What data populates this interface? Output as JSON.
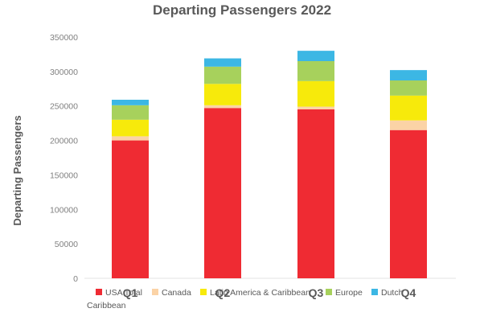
{
  "chart_data": {
    "type": "bar",
    "stacked": true,
    "title": "Departing Passengers 2022",
    "xlabel": "",
    "ylabel": "Departing Passengers",
    "categories": [
      "Q1",
      "Q2",
      "Q3",
      "Q4"
    ],
    "y_ticks": [
      "0",
      "50000",
      "100000",
      "150000",
      "200000",
      "250000",
      "300000",
      "350000"
    ],
    "ylim": [
      0,
      350000
    ],
    "grid": false,
    "legend_position": "bottom",
    "series": [
      {
        "name": "USA Total",
        "color": "#ef2b33",
        "values": [
          200000,
          247000,
          245000,
          215000
        ]
      },
      {
        "name": "Canada",
        "color": "#fbd3a6",
        "values": [
          6000,
          4000,
          4000,
          14000
        ]
      },
      {
        "name": "Latin America & Caribbean",
        "color": "#f7ea0b",
        "values": [
          24000,
          31000,
          37000,
          36000
        ]
      },
      {
        "name": "Europe",
        "color": "#a7d15c",
        "values": [
          21000,
          25000,
          29000,
          22000
        ]
      },
      {
        "name": "Dutch Caribbean",
        "color": "#3cb7e4",
        "values": [
          8000,
          12000,
          15000,
          15000
        ]
      }
    ]
  }
}
